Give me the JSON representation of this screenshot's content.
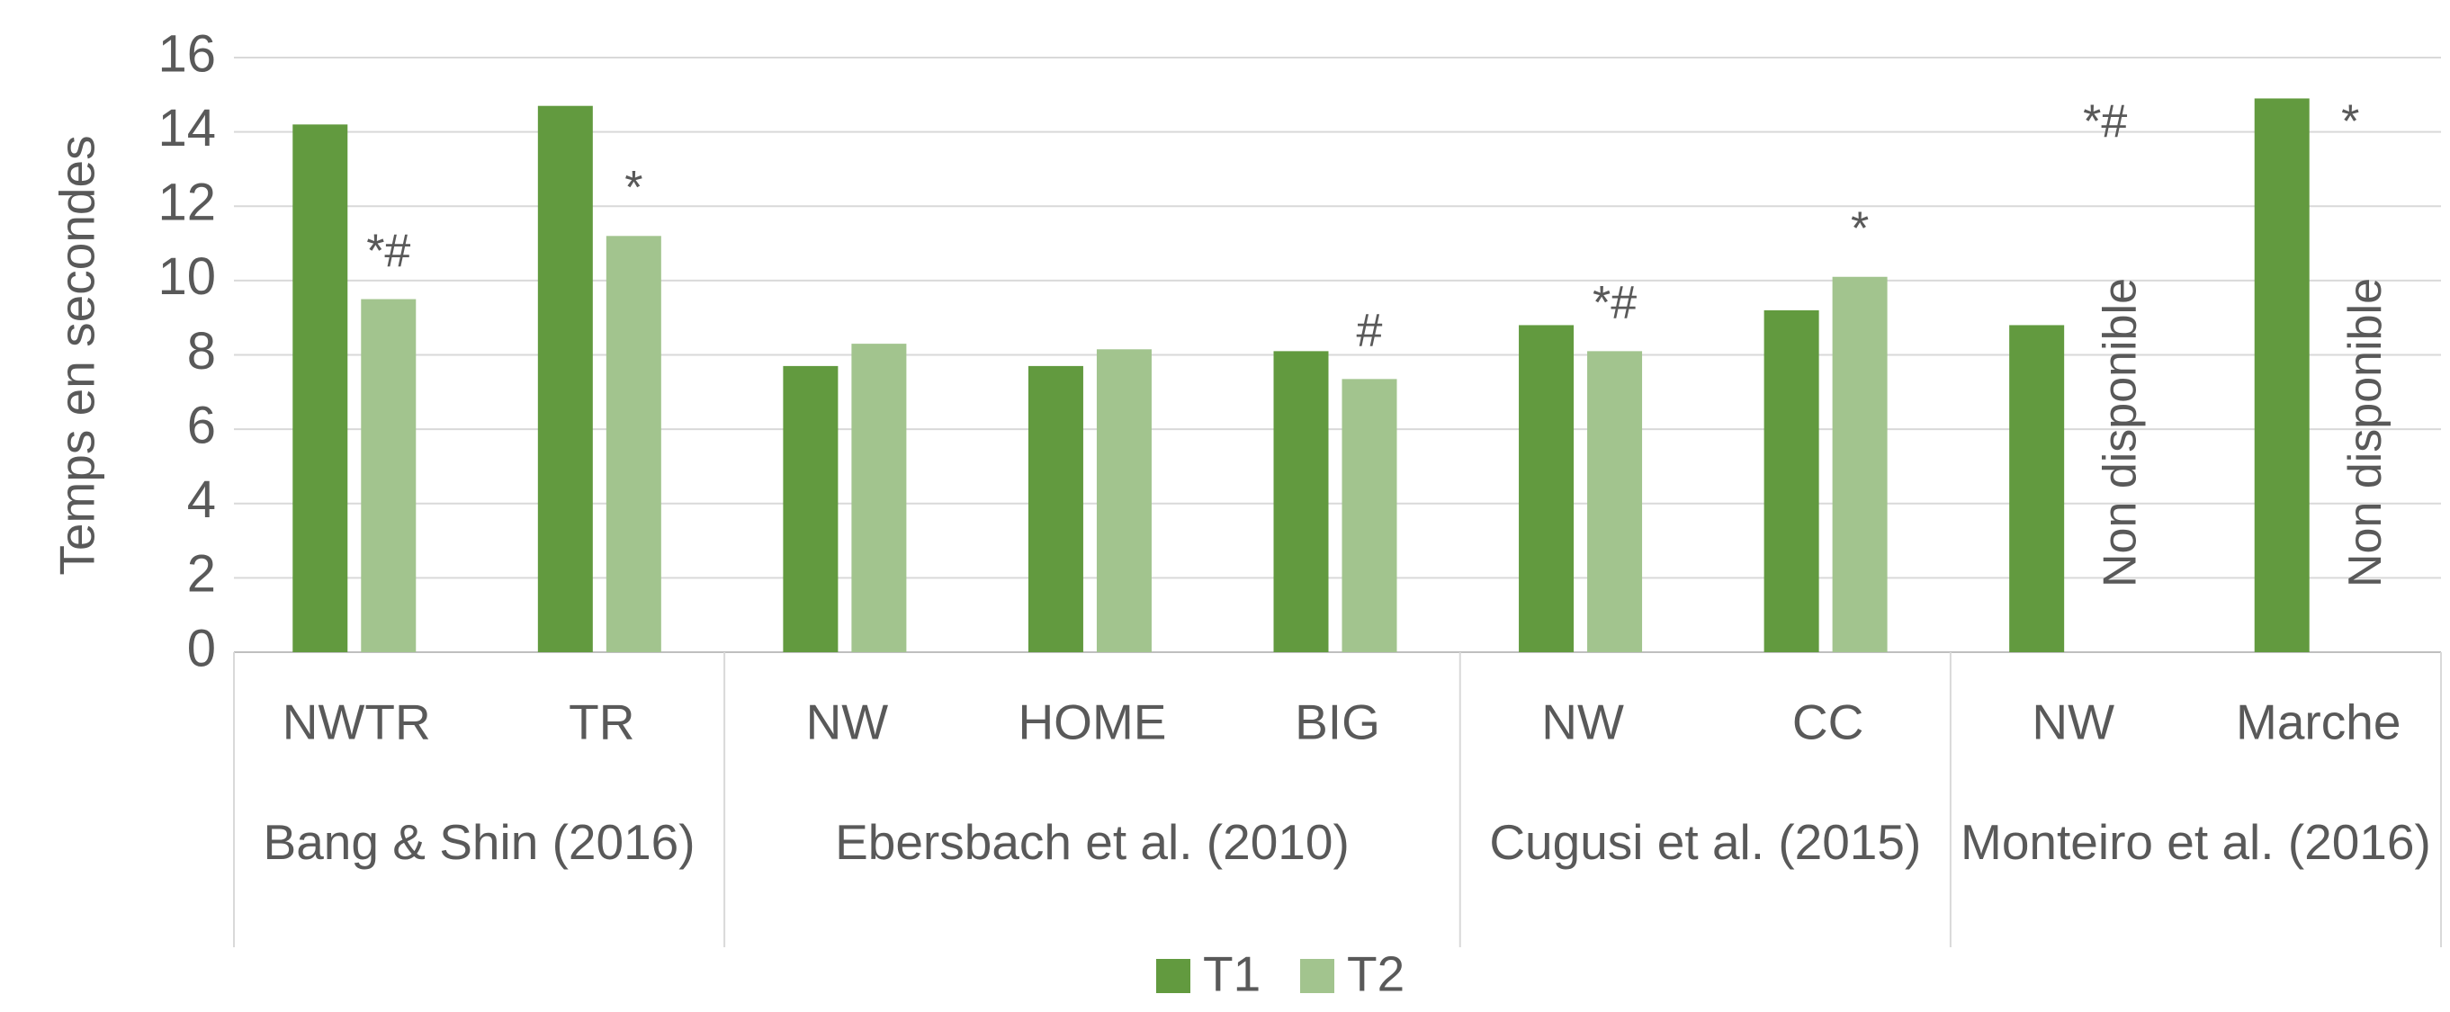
{
  "chart_data": {
    "type": "bar",
    "y_label": "Temps en secondes",
    "groups": [
      {
        "name": "Bang & Shin (2016)",
        "categories": [
          "NWTR",
          "TR"
        ]
      },
      {
        "name": "Ebersbach et al. (2010)",
        "categories": [
          "NW",
          "HOME",
          "BIG"
        ]
      },
      {
        "name": "Cugusi et al. (2015)",
        "categories": [
          "NW",
          "CC"
        ]
      },
      {
        "name": "Monteiro et al. (2016)",
        "categories": [
          "NW",
          "Marche"
        ]
      }
    ],
    "series": [
      {
        "name": "T1",
        "color": "#629a3f",
        "values": [
          14.2,
          14.7,
          7.7,
          7.7,
          8.1,
          8.8,
          9.2,
          8.8,
          14.9
        ]
      },
      {
        "name": "T2",
        "color": "#a2c48e",
        "values": [
          9.5,
          11.2,
          8.3,
          8.15,
          7.35,
          8.1,
          10.1,
          null,
          null
        ],
        "value_labels": [
          null,
          null,
          null,
          null,
          null,
          null,
          null,
          "Non disponible",
          "Non disponible"
        ]
      }
    ],
    "annotations": [
      "*#",
      "*",
      null,
      null,
      "#",
      "*#",
      "*",
      "*#",
      "*"
    ],
    "ylim": [
      0,
      16
    ],
    "yticks": [
      0,
      2,
      4,
      6,
      8,
      10,
      12,
      14,
      16
    ],
    "grid": true,
    "legend": "bottom"
  }
}
